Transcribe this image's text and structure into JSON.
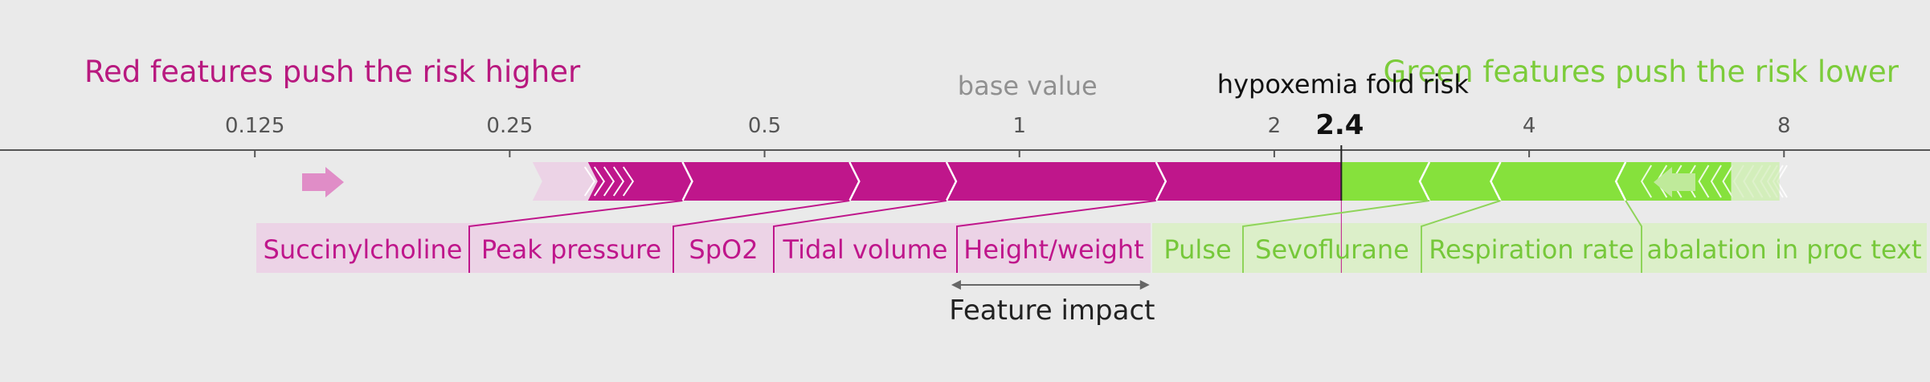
{
  "chart_data": {
    "type": "bar",
    "subtype": "shap-force-plot",
    "scale": "log2",
    "xlim": [
      0.0625,
      11.9
    ],
    "ticks": [
      0.125,
      0.25,
      0.5,
      1,
      2,
      4,
      8
    ],
    "tick_labels": [
      "0.125",
      "0.25",
      "0.5",
      "1",
      "2",
      "4",
      "8"
    ],
    "base_value": 1,
    "base_value_label": "base value",
    "output_value": 2.4,
    "output_value_label": "2.4",
    "output_name": "hypoxemia fold risk",
    "red_caption": "Red features push the risk higher",
    "green_caption": "Green features push the risk lower",
    "impact_caption": "Feature impact",
    "positive_features": [
      {
        "name": "Succinylcholine",
        "from": 0.3,
        "to": 0.4
      },
      {
        "name": "Peak pressure",
        "from": 0.4,
        "to": 0.63
      },
      {
        "name": "SpO2",
        "from": 0.63,
        "to": 0.82
      },
      {
        "name": "Tidal volume",
        "from": 0.82,
        "to": 1.45
      },
      {
        "name": "Height/weight",
        "from": 1.45,
        "to": 2.4
      }
    ],
    "negative_features": [
      {
        "name": "Pulse",
        "from": 2.4,
        "to": 3.05
      },
      {
        "name": "Sevoflurane",
        "from": 3.05,
        "to": 3.7
      },
      {
        "name": "Respiration rate",
        "from": 3.7,
        "to": 5.2
      },
      {
        "name": "abalation in proc text",
        "from": 5.2,
        "to": 7.9
      }
    ],
    "colors": {
      "positive": "#bf168b",
      "positive_light": "#ecd3e6",
      "negative": "#86e13c",
      "negative_light": "#dcefc9",
      "background": "#eaeaea"
    }
  }
}
